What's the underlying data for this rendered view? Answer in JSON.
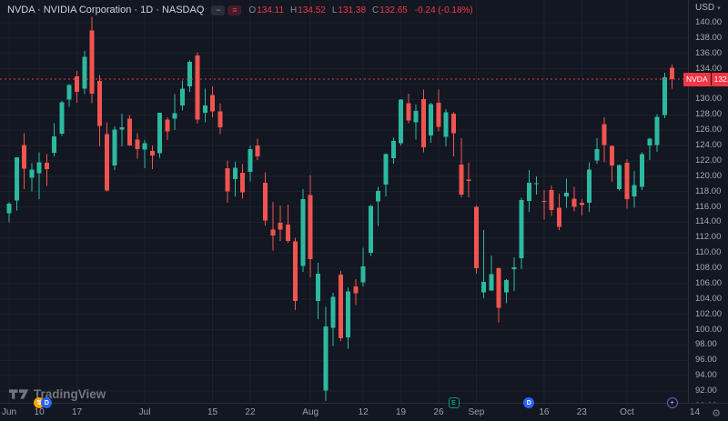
{
  "legend": {
    "title": "NVDA · NVIDIA Corporation · 1D · NASDAQ",
    "buttons": {
      "collapse_glyph": "−",
      "menu_glyph": "≡"
    },
    "ohlc": {
      "o_label": "O",
      "o": "134.11",
      "h_label": "H",
      "h": "134.52",
      "l_label": "L",
      "l": "131.38",
      "c_label": "C",
      "c": "132.65",
      "change": "-0.24 (-0.18%)"
    }
  },
  "price_scale": {
    "currency_label": "USD",
    "caret": "▾",
    "symbol_label": "NVDA",
    "last_price_label": "132.65"
  },
  "watermark": {
    "text": "TradingView"
  },
  "icons": {
    "gear": "⚙"
  },
  "colors": {
    "bg": "#131722",
    "up": "#2CB9A0",
    "down": "#F0544F",
    "accent_red": "#F23645",
    "title_text": "#D1D4DC",
    "axis_text": "#A6AAB3",
    "grid": "rgba(134,142,160,0.08)",
    "blue": "#2962FF",
    "green_event": "#089981",
    "orange": "#F7A600",
    "purple": "#7E57C2"
  },
  "chart_data": {
    "type": "candlestick",
    "symbol": "NVDA",
    "title": "NVDA · NVIDIA Corporation · 1D · NASDAQ",
    "interval": "1D",
    "exchange": "NASDAQ",
    "currency": "USD",
    "last_price": 132.65,
    "price_axis": {
      "min": 90,
      "max": 140,
      "step": 2,
      "decimals": 2
    },
    "visible_price_range": [
      88.5,
      142.9
    ],
    "grid": "on",
    "time_ticks": [
      {
        "label": "Jun",
        "i": 0
      },
      {
        "label": "10",
        "i": 4
      },
      {
        "label": "17",
        "i": 9
      },
      {
        "label": "Jul",
        "i": 18
      },
      {
        "label": "15",
        "i": 27
      },
      {
        "label": "22",
        "i": 32
      },
      {
        "label": "Aug",
        "i": 40
      },
      {
        "label": "12",
        "i": 47
      },
      {
        "label": "19",
        "i": 52
      },
      {
        "label": "26",
        "i": 57
      },
      {
        "label": "Sep",
        "i": 62
      },
      {
        "label": "16",
        "i": 71
      },
      {
        "label": "23",
        "i": 76
      },
      {
        "label": "Oct",
        "i": 82
      },
      {
        "label": "14",
        "i": 91
      }
    ],
    "events": [
      {
        "type": "split",
        "glyph": "⇅",
        "i": 4,
        "style": "orange-filled"
      },
      {
        "type": "dividend",
        "glyph": "D",
        "i": 5,
        "style": "blue-filled"
      },
      {
        "type": "earnings",
        "glyph": "E",
        "i": 59,
        "style": "green-outline"
      },
      {
        "type": "dividend",
        "glyph": "D",
        "i": 69,
        "style": "blue-filled"
      },
      {
        "type": "marker",
        "glyph": "+",
        "i": 88,
        "style": "purple-outline"
      }
    ],
    "candles": [
      [
        "Jun 4",
        115.2,
        116.6,
        114.0,
        116.44
      ],
      [
        "Jun 5",
        116.85,
        122.45,
        115.52,
        122.44
      ],
      [
        "Jun 6",
        124.05,
        125.59,
        118.32,
        121.0
      ],
      [
        "Jun 7",
        119.77,
        121.69,
        118.02,
        120.89
      ],
      [
        "Jun 10",
        120.37,
        123.1,
        117.01,
        121.79
      ],
      [
        "Jun 11",
        121.77,
        122.87,
        118.74,
        120.91
      ],
      [
        "Jun 12",
        123.06,
        126.88,
        122.6,
        125.2
      ],
      [
        "Jun 13",
        125.55,
        129.8,
        125.26,
        129.61
      ],
      [
        "Jun 14",
        129.96,
        131.98,
        129.04,
        131.88
      ],
      [
        "Jun 17",
        132.99,
        133.73,
        129.58,
        130.98
      ],
      [
        "Jun 18",
        131.4,
        136.33,
        130.68,
        135.58
      ],
      [
        "Jun 20",
        139.0,
        140.76,
        129.51,
        130.78
      ],
      [
        "Jun 21",
        132.39,
        133.18,
        123.9,
        126.57
      ],
      [
        "Jun 24",
        125.47,
        127.0,
        118.04,
        118.11
      ],
      [
        "Jun 25",
        121.37,
        126.5,
        120.81,
        126.09
      ],
      [
        "Jun 26",
        126.1,
        128.12,
        123.91,
        126.4
      ],
      [
        "Jun 27",
        127.5,
        128.0,
        123.92,
        123.99
      ],
      [
        "Jun 28",
        124.77,
        125.58,
        122.3,
        123.54
      ],
      [
        "Jul 1",
        123.47,
        124.74,
        121.02,
        124.3
      ],
      [
        "Jul 2",
        123.3,
        124.0,
        120.9,
        122.67
      ],
      [
        "Jul 3",
        122.97,
        128.28,
        122.4,
        128.28
      ],
      [
        "Jul 5",
        127.38,
        127.7,
        124.72,
        125.83
      ],
      [
        "Jul 8",
        127.49,
        130.71,
        126.01,
        128.2
      ],
      [
        "Jul 9",
        129.19,
        132.5,
        128.58,
        131.38
      ],
      [
        "Jul 10",
        131.71,
        135.1,
        131.0,
        134.91
      ],
      [
        "Jul 11",
        135.75,
        136.15,
        126.86,
        127.4
      ],
      [
        "Jul 12",
        128.26,
        131.39,
        127.01,
        129.24
      ],
      [
        "Jul 15",
        130.56,
        131.7,
        127.7,
        128.44
      ],
      [
        "Jul 16",
        128.42,
        129.5,
        125.5,
        126.36
      ],
      [
        "Jul 17",
        121.03,
        122.06,
        116.56,
        117.99
      ],
      [
        "Jul 18",
        119.6,
        121.85,
        117.37,
        121.09
      ],
      [
        "Jul 19",
        120.42,
        121.6,
        117.1,
        117.93
      ],
      [
        "Jul 22",
        120.55,
        124.0,
        119.35,
        123.54
      ],
      [
        "Jul 23",
        124.03,
        124.89,
        122.1,
        122.59
      ],
      [
        "Jul 24",
        119.17,
        120.5,
        113.6,
        114.25
      ],
      [
        "Jul 25",
        113.04,
        116.63,
        110.3,
        112.28
      ],
      [
        "Jul 26",
        113.91,
        116.2,
        111.58,
        113.06
      ],
      [
        "Jul 29",
        113.69,
        116.28,
        111.3,
        111.59
      ],
      [
        "Jul 30",
        111.52,
        111.99,
        102.54,
        103.73
      ],
      [
        "Jul 31",
        108.32,
        118.34,
        107.56,
        117.02
      ],
      [
        "Aug 1",
        117.53,
        120.16,
        106.81,
        109.21
      ],
      [
        "Aug 2",
        103.76,
        108.72,
        101.37,
        107.27
      ],
      [
        "Aug 5",
        92.06,
        103.0,
        90.69,
        100.45
      ],
      [
        "Aug 6",
        100.26,
        104.8,
        97.86,
        104.25
      ],
      [
        "Aug 7",
        107.16,
        107.68,
        98.55,
        98.91
      ],
      [
        "Aug 8",
        99.0,
        105.5,
        97.52,
        104.97
      ],
      [
        "Aug 9",
        105.64,
        106.6,
        103.21,
        104.75
      ],
      [
        "Aug 12",
        106.18,
        110.66,
        105.62,
        108.23
      ],
      [
        "Aug 13",
        110.0,
        116.22,
        109.62,
        116.14
      ],
      [
        "Aug 14",
        116.7,
        118.6,
        113.53,
        118.08
      ],
      [
        "Aug 15",
        118.91,
        123.0,
        117.38,
        122.86
      ],
      [
        "Aug 16",
        122.33,
        125.0,
        121.65,
        124.58
      ],
      [
        "Aug 19",
        124.28,
        130.02,
        123.98,
        130.0
      ],
      [
        "Aug 20",
        129.54,
        130.75,
        126.9,
        127.25
      ],
      [
        "Aug 21",
        127.03,
        129.35,
        124.8,
        128.5
      ],
      [
        "Aug 22",
        130.02,
        131.26,
        123.1,
        123.74
      ],
      [
        "Aug 23",
        125.29,
        129.6,
        124.38,
        129.37
      ],
      [
        "Aug 26",
        129.57,
        131.26,
        125.86,
        126.46
      ],
      [
        "Aug 27",
        125.12,
        128.77,
        123.89,
        128.3
      ],
      [
        "Aug 28",
        128.13,
        128.33,
        122.57,
        125.61
      ],
      [
        "Aug 29",
        121.52,
        124.94,
        117.22,
        117.59
      ],
      [
        "Aug 30",
        119.53,
        121.75,
        117.25,
        119.37
      ],
      [
        "Sep 3",
        116.01,
        116.21,
        107.29,
        108.0
      ],
      [
        "Sep 4",
        104.88,
        113.0,
        104.11,
        106.21
      ],
      [
        "Sep 5",
        105.12,
        109.66,
        105.03,
        107.21
      ],
      [
        "Sep 6",
        108.02,
        108.14,
        100.95,
        102.83
      ],
      [
        "Sep 9",
        104.89,
        106.58,
        103.43,
        106.47
      ],
      [
        "Sep 10",
        107.89,
        109.4,
        105.07,
        108.1
      ],
      [
        "Sep 11",
        109.33,
        117.19,
        107.86,
        116.91
      ],
      [
        "Sep 12",
        116.79,
        120.79,
        115.38,
        119.14
      ],
      [
        "Sep 13",
        119.08,
        119.96,
        117.62,
        119.1
      ],
      [
        "Sep 16",
        116.79,
        118.18,
        114.36,
        116.78
      ],
      [
        "Sep 17",
        118.17,
        118.8,
        114.83,
        115.59
      ],
      [
        "Sep 18",
        115.89,
        117.7,
        112.97,
        113.37
      ],
      [
        "Sep 19",
        117.35,
        119.66,
        115.89,
        117.87
      ],
      [
        "Sep 20",
        117.06,
        118.62,
        115.39,
        116.0
      ],
      [
        "Sep 23",
        116.55,
        116.99,
        114.86,
        116.26
      ],
      [
        "Sep 24",
        116.52,
        121.8,
        115.38,
        120.87
      ],
      [
        "Sep 25",
        122.02,
        124.94,
        121.61,
        123.51
      ],
      [
        "Sep 26",
        126.8,
        127.67,
        121.8,
        124.04
      ],
      [
        "Sep 27",
        123.97,
        124.03,
        119.26,
        121.4
      ],
      [
        "Sep 30",
        118.33,
        121.5,
        118.15,
        121.44
      ],
      [
        "Oct 1",
        121.78,
        122.24,
        115.79,
        117.0
      ],
      [
        "Oct 2",
        117.37,
        120.67,
        115.88,
        118.85
      ],
      [
        "Oct 3",
        118.61,
        123.1,
        118.2,
        122.85
      ],
      [
        "Oct 4",
        124.01,
        125.0,
        122.08,
        124.92
      ],
      [
        "Oct 7",
        124.04,
        128.1,
        123.18,
        127.72
      ],
      [
        "Oct 8",
        128.0,
        133.48,
        127.58,
        132.89
      ],
      [
        "Oct 9",
        134.11,
        134.52,
        131.38,
        132.65
      ]
    ]
  }
}
